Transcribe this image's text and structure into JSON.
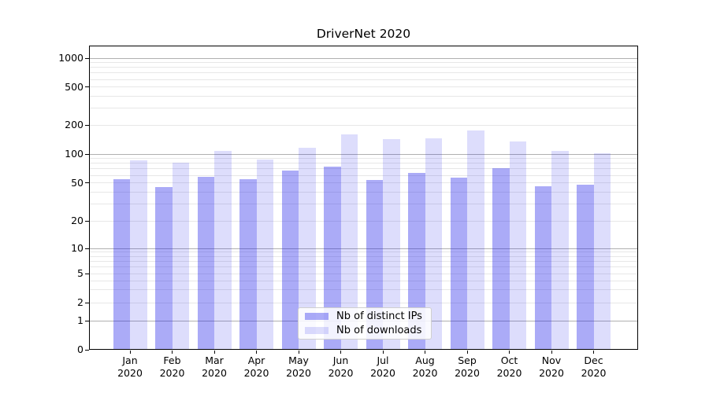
{
  "chart_data": {
    "type": "bar",
    "title": "DriverNet 2020",
    "categories": [
      {
        "month": "Jan",
        "year": "2020"
      },
      {
        "month": "Feb",
        "year": "2020"
      },
      {
        "month": "Mar",
        "year": "2020"
      },
      {
        "month": "Apr",
        "year": "2020"
      },
      {
        "month": "May",
        "year": "2020"
      },
      {
        "month": "Jun",
        "year": "2020"
      },
      {
        "month": "Jul",
        "year": "2020"
      },
      {
        "month": "Aug",
        "year": "2020"
      },
      {
        "month": "Sep",
        "year": "2020"
      },
      {
        "month": "Oct",
        "year": "2020"
      },
      {
        "month": "Nov",
        "year": "2020"
      },
      {
        "month": "Dec",
        "year": "2020"
      }
    ],
    "series": [
      {
        "name": "Nb of distinct IPs",
        "color": "rgba(28,28,233,0.37)",
        "values": [
          54,
          44,
          57,
          54,
          66,
          72,
          53,
          62,
          56,
          70,
          45,
          47
        ]
      },
      {
        "name": "Nb of downloads",
        "color": "rgba(28,28,233,0.15)",
        "values": [
          85,
          80,
          106,
          86,
          115,
          158,
          140,
          142,
          172,
          132,
          106,
          100
        ]
      }
    ],
    "yticks": [
      "0",
      "1",
      "2",
      "5",
      "10",
      "20",
      "50",
      "100",
      "200",
      "500",
      "1000"
    ],
    "ylim": [
      0,
      1000
    ],
    "yscale": "log-like (log above 1, linear 0-1, tick set 0/1/2/5/10/20/50/100/200/500/1000)",
    "grid": "major gray lines at 1,10,100,1000; faint minor lines at 2-9 of each decade",
    "legend_position": "lower center, inside plot",
    "xlabel": "",
    "ylabel": ""
  }
}
